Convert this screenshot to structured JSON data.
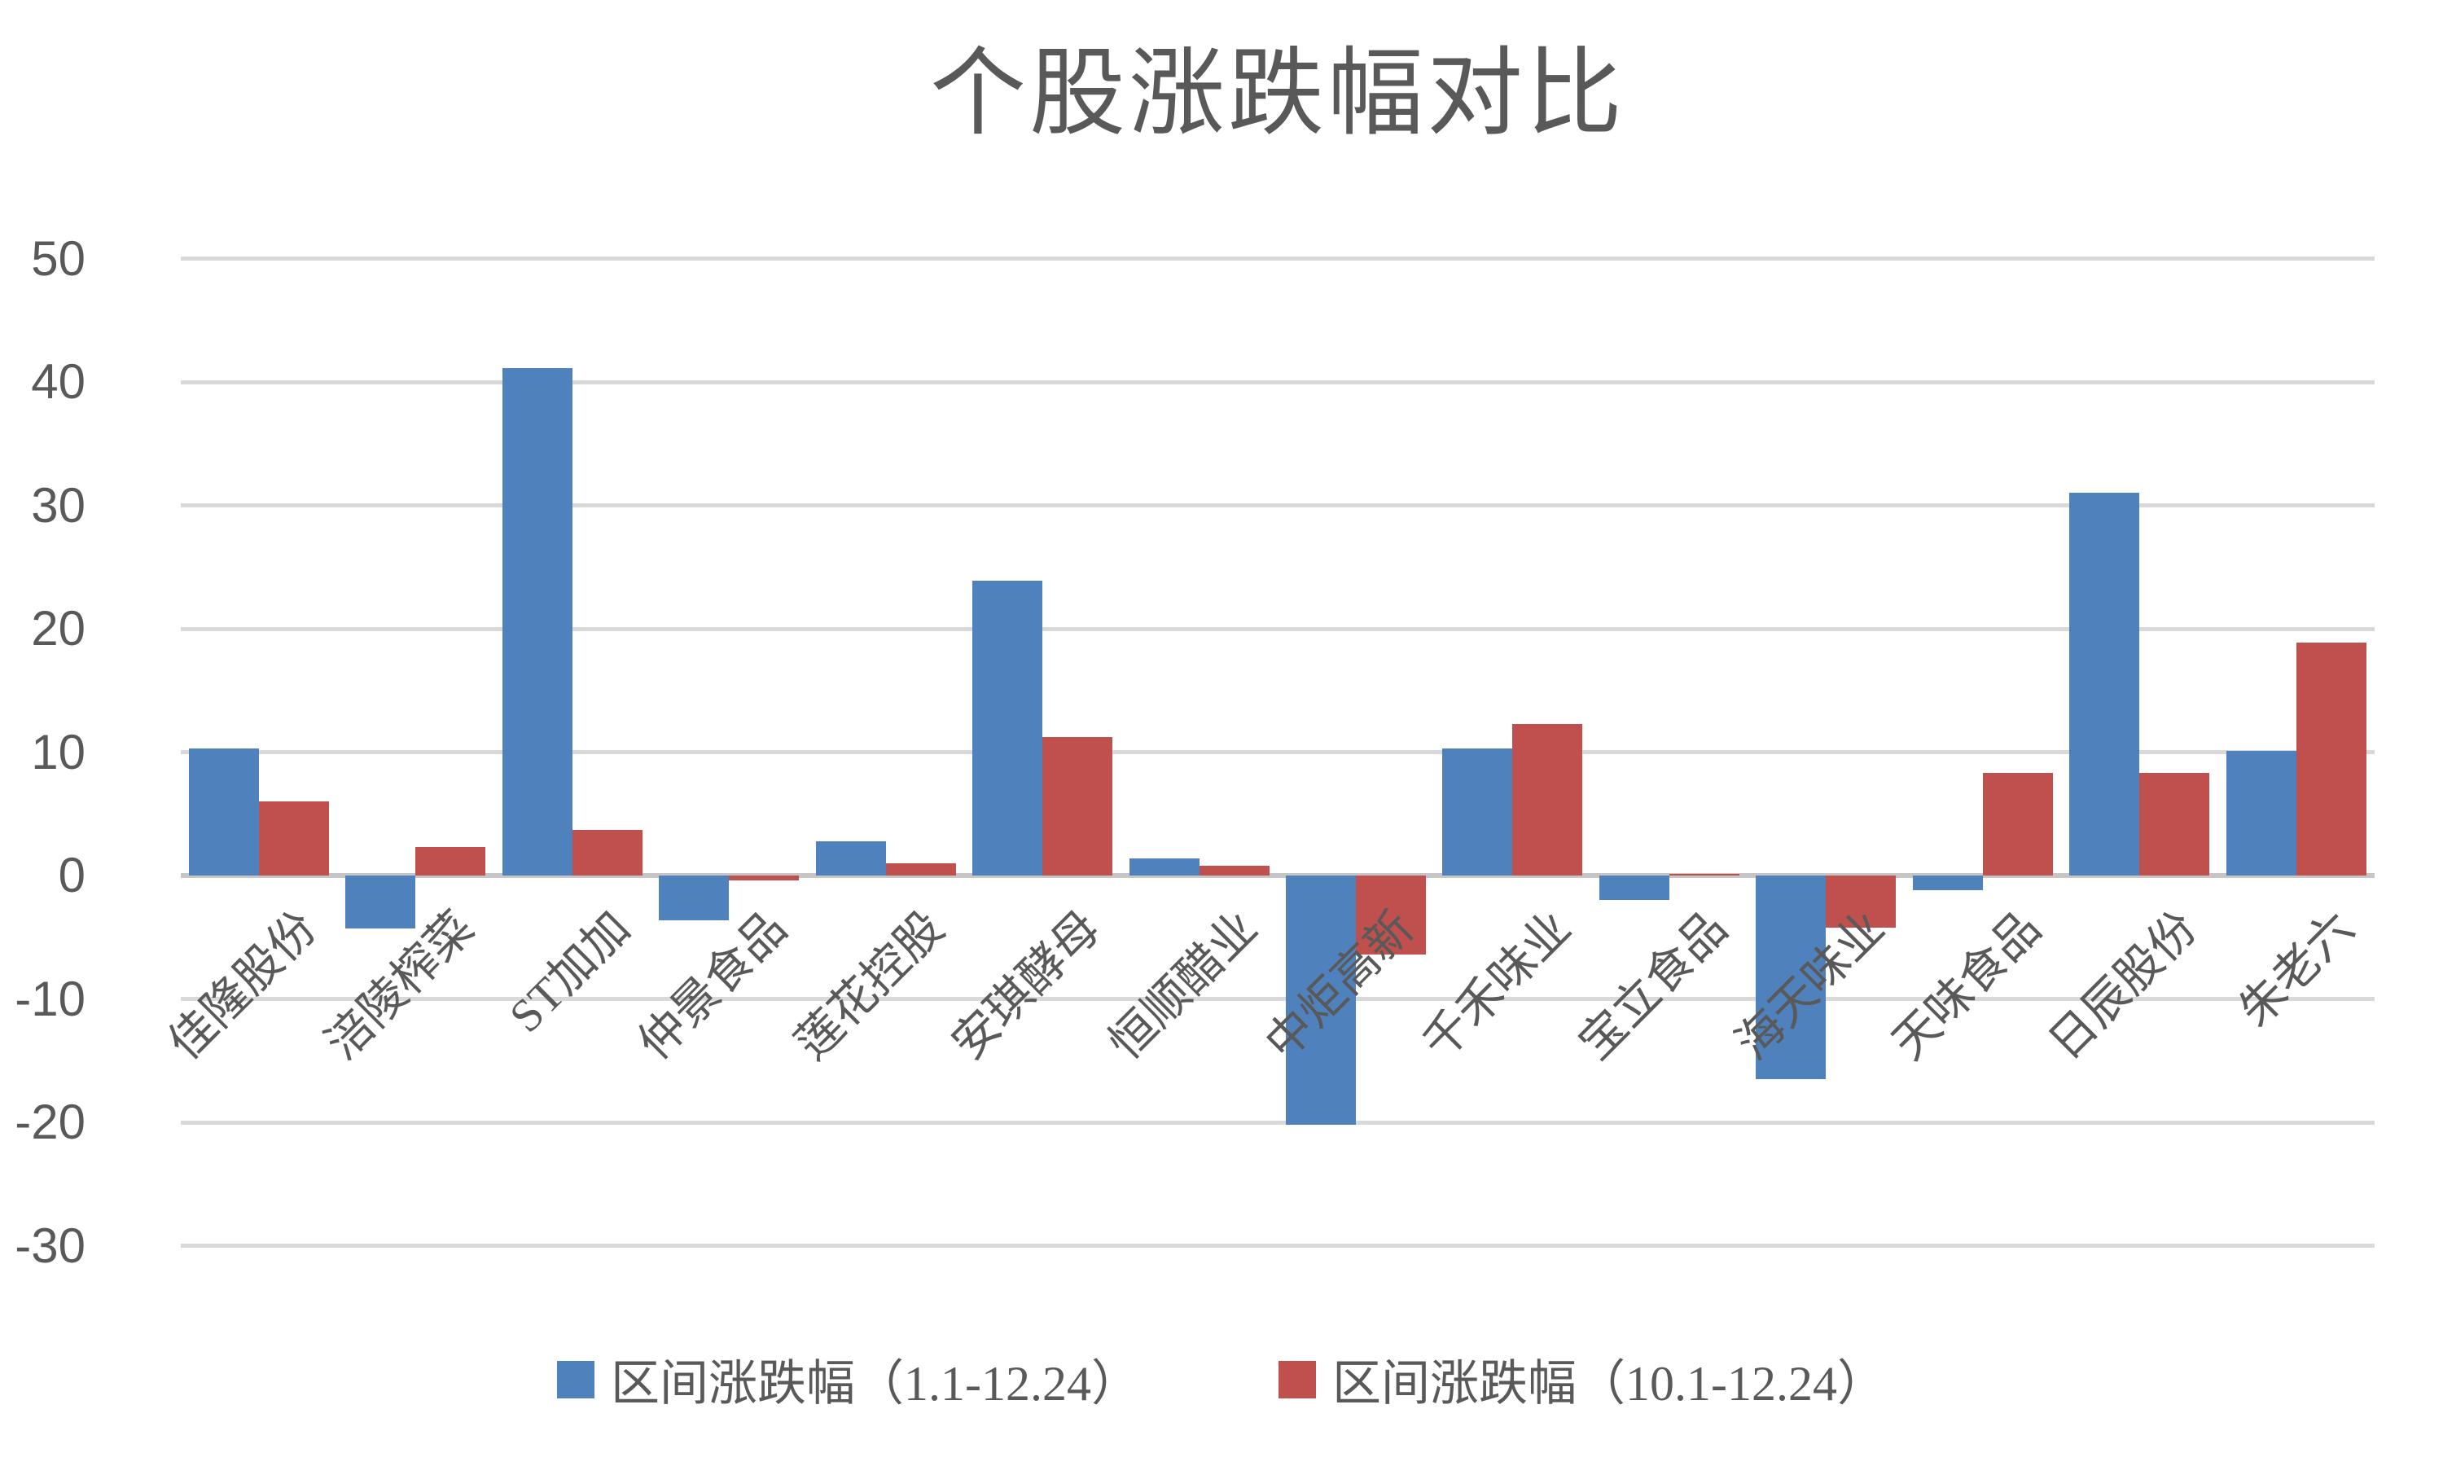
{
  "chart_data": {
    "type": "bar",
    "title": "个股涨跌幅对比",
    "categories": [
      "佳隆股份",
      "涪陵榨菜",
      "ST加加",
      "仲景食品",
      "莲花控股",
      "安琪酵母",
      "恒顺醋业",
      "中炬高新",
      "千禾味业",
      "宝立食品",
      "海天味业",
      "天味食品",
      "日辰股份",
      "朱老六"
    ],
    "series": [
      {
        "name": "区间涨跌幅（1.1-12.24）",
        "color": "#4F81BD",
        "values": [
          10.3,
          -4.3,
          41.1,
          -3.6,
          2.8,
          23.9,
          1.4,
          -20.2,
          10.3,
          -2.0,
          -16.5,
          -1.2,
          31.0,
          10.1
        ]
      },
      {
        "name": "区间涨跌幅（10.1-12.24）",
        "color": "#C0504D",
        "values": [
          6.0,
          2.3,
          3.7,
          -0.4,
          1.0,
          11.2,
          0.8,
          -6.4,
          12.3,
          0.1,
          -4.2,
          8.3,
          8.3,
          18.9
        ]
      }
    ],
    "ylim": [
      -30,
      50
    ],
    "yticks": [
      50,
      40,
      30,
      20,
      10,
      0,
      -10,
      -20,
      -30
    ],
    "grid": true,
    "legend_position": "bottom",
    "colors": {
      "gridline": "#D9D9D9",
      "zero_line": "#C6C6C6",
      "text": "#595959",
      "background": "#FFFFFF"
    }
  }
}
